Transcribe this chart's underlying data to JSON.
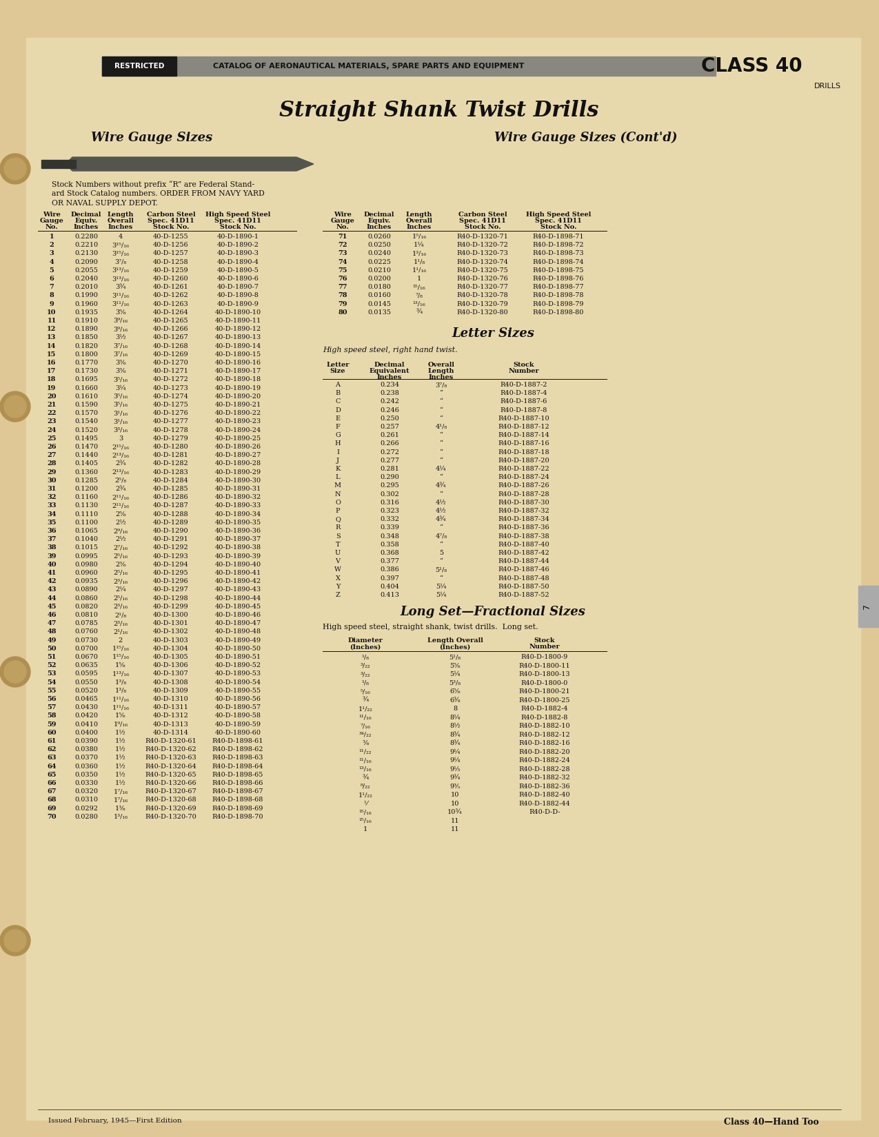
{
  "bg_color": "#e8d5a3",
  "title": "Straight Shank Twist Drills",
  "header_text": "CATALOG OF AERONAUTICAL MATERIALS, SPARE PARTS AND EQUIPMENT",
  "class_text": "CLASS 40",
  "restricted_text": "RESTRICTED",
  "drills_text": "DRILLS",
  "footer_left": "Issued February, 1945—First Edition",
  "footer_right": "Class 40—Hand Too",
  "section1_title": "Wire Gauge Sizes",
  "section2_title": "Wire Gauge Sizes (Cont'd)",
  "section3_title": "Letter Sizes",
  "section4_title": "Long Set—Fractional Sizes",
  "stock_note_lines": [
    "Stock Numbers without prefix “R” are Federal Stand-",
    "ard Stock Catalog numbers. ORDER FROM NAVY YARD",
    "OR NAVAL SUPPLY DEPOT."
  ],
  "wire_gauge_data": [
    [
      "1",
      "0.2280",
      "4",
      "40-D-1255",
      "40-D-1890-1"
    ],
    [
      "2",
      "0.2210",
      "3¹⁵/₁₆",
      "40-D-1256",
      "40-D-1890-2"
    ],
    [
      "3",
      "0.2130",
      "3¹⁵/₁₆",
      "40-D-1257",
      "40-D-1890-3"
    ],
    [
      "4",
      "0.2090",
      "3⁷/₈",
      "40-D-1258",
      "40-D-1890-4"
    ],
    [
      "5",
      "0.2055",
      "3¹³/₁₆",
      "40-D-1259",
      "40-D-1890-5"
    ],
    [
      "6",
      "0.2040",
      "3¹³/₁₆",
      "40-D-1260",
      "40-D-1890-6"
    ],
    [
      "7",
      "0.2010",
      "3¾",
      "40-D-1261",
      "40-D-1890-7"
    ],
    [
      "8",
      "0.1990",
      "3¹¹/₁₆",
      "40-D-1262",
      "40-D-1890-8"
    ],
    [
      "9",
      "0.1960",
      "3¹¹/₁₆",
      "40-D-1263",
      "40-D-1890-9"
    ],
    [
      "10",
      "0.1935",
      "3⅝",
      "40-D-1264",
      "40-D-1890-10"
    ],
    [
      "11",
      "0.1910",
      "3⁹/₁₆",
      "40-D-1265",
      "40-D-1890-11"
    ],
    [
      "12",
      "0.1890",
      "3⁹/₁₆",
      "40-D-1266",
      "40-D-1890-12"
    ],
    [
      "13",
      "0.1850",
      "3½",
      "40-D-1267",
      "40-D-1890-13"
    ],
    [
      "14",
      "0.1820",
      "3⁷/₁₆",
      "40-D-1268",
      "40-D-1890-14"
    ],
    [
      "15",
      "0.1800",
      "3⁷/₁₆",
      "40-D-1269",
      "40-D-1890-15"
    ],
    [
      "16",
      "0.1770",
      "3⅜",
      "40-D-1270",
      "40-D-1890-16"
    ],
    [
      "17",
      "0.1730",
      "3⅜",
      "40-D-1271",
      "40-D-1890-17"
    ],
    [
      "18",
      "0.1695",
      "3⁵/₁₆",
      "40-D-1272",
      "40-D-1890-18"
    ],
    [
      "19",
      "0.1660",
      "3¼",
      "40-D-1273",
      "40-D-1890-19"
    ],
    [
      "20",
      "0.1610",
      "3⁵/₁₆",
      "40-D-1274",
      "40-D-1890-20"
    ],
    [
      "21",
      "0.1590",
      "3⁵/₁₆",
      "40-D-1275",
      "40-D-1890-21"
    ],
    [
      "22",
      "0.1570",
      "3¹/₁₆",
      "40-D-1276",
      "40-D-1890-22"
    ],
    [
      "23",
      "0.1540",
      "3¹/₁₆",
      "40-D-1277",
      "40-D-1890-23"
    ],
    [
      "24",
      "0.1520",
      "3³/₁₆",
      "40-D-1278",
      "40-D-1890-24"
    ],
    [
      "25",
      "0.1495",
      "3",
      "40-D-1279",
      "40-D-1890-25"
    ],
    [
      "26",
      "0.1470",
      "2¹⁵/₁₆",
      "40-D-1280",
      "40-D-1890-26"
    ],
    [
      "27",
      "0.1440",
      "2¹³/₁₆",
      "40-D-1281",
      "40-D-1890-27"
    ],
    [
      "28",
      "0.1405",
      "2¾",
      "40-D-1282",
      "40-D-1890-28"
    ],
    [
      "29",
      "0.1360",
      "2¹³/₁₆",
      "40-D-1283",
      "40-D-1890-29"
    ],
    [
      "30",
      "0.1285",
      "2⁵/₈",
      "40-D-1284",
      "40-D-1890-30"
    ],
    [
      "31",
      "0.1200",
      "2¾",
      "40-D-1285",
      "40-D-1890-31"
    ],
    [
      "32",
      "0.1160",
      "2¹¹/₁₆",
      "40-D-1286",
      "40-D-1890-32"
    ],
    [
      "33",
      "0.1130",
      "2¹¹/₁₆",
      "40-D-1287",
      "40-D-1890-33"
    ],
    [
      "34",
      "0.1110",
      "2⅝",
      "40-D-1288",
      "40-D-1890-34"
    ],
    [
      "35",
      "0.1100",
      "2½",
      "40-D-1289",
      "40-D-1890-35"
    ],
    [
      "36",
      "0.1065",
      "2⁹/₁₆",
      "40-D-1290",
      "40-D-1890-36"
    ],
    [
      "37",
      "0.1040",
      "2½",
      "40-D-1291",
      "40-D-1890-37"
    ],
    [
      "38",
      "0.1015",
      "2⁷/₁₆",
      "40-D-1292",
      "40-D-1890-38"
    ],
    [
      "39",
      "0.0995",
      "2⁵/₁₆",
      "40-D-1293",
      "40-D-1890-39"
    ],
    [
      "40",
      "0.0980",
      "2⅜",
      "40-D-1294",
      "40-D-1890-40"
    ],
    [
      "41",
      "0.0960",
      "2⁵/₁₆",
      "40-D-1295",
      "40-D-1890-41"
    ],
    [
      "42",
      "0.0935",
      "2³/₁₆",
      "40-D-1296",
      "40-D-1890-42"
    ],
    [
      "43",
      "0.0890",
      "2¼",
      "40-D-1297",
      "40-D-1890-43"
    ],
    [
      "44",
      "0.0860",
      "2⁵/₁₆",
      "40-D-1298",
      "40-D-1890-44"
    ],
    [
      "45",
      "0.0820",
      "2³/₁₆",
      "40-D-1299",
      "40-D-1890-45"
    ],
    [
      "46",
      "0.0810",
      "2¹/₈",
      "40-D-1300",
      "40-D-1890-46"
    ],
    [
      "47",
      "0.0785",
      "2³/₁₆",
      "40-D-1301",
      "40-D-1890-47"
    ],
    [
      "48",
      "0.0760",
      "2¹/₁₆",
      "40-D-1302",
      "40-D-1890-48"
    ],
    [
      "49",
      "0.0730",
      "2",
      "40-D-1303",
      "40-D-1890-49"
    ],
    [
      "50",
      "0.0700",
      "1¹⁵/₁₆",
      "40-D-1304",
      "40-D-1890-50"
    ],
    [
      "51",
      "0.0670",
      "1¹⁵/₁₆",
      "40-D-1305",
      "40-D-1890-51"
    ],
    [
      "52",
      "0.0635",
      "1⅝",
      "40-D-1306",
      "40-D-1890-52"
    ],
    [
      "53",
      "0.0595",
      "1¹³/₁₆",
      "40-D-1307",
      "40-D-1890-53"
    ],
    [
      "54",
      "0.0550",
      "1³/₈",
      "40-D-1308",
      "40-D-1890-54"
    ],
    [
      "55",
      "0.0520",
      "1³/₈",
      "40-D-1309",
      "40-D-1890-55"
    ],
    [
      "56",
      "0.0465",
      "1¹¹/₁₆",
      "40-D-1310",
      "40-D-1890-56"
    ],
    [
      "57",
      "0.0430",
      "1¹¹/₁₆",
      "40-D-1311",
      "40-D-1890-57"
    ],
    [
      "58",
      "0.0420",
      "1⅝",
      "40-D-1312",
      "40-D-1890-58"
    ],
    [
      "59",
      "0.0410",
      "1⁹/₁₆",
      "40-D-1313",
      "40-D-1890-59"
    ],
    [
      "60",
      "0.0400",
      "1½",
      "40-D-1314",
      "40-D-1890-60"
    ],
    [
      "61",
      "0.0390",
      "1½",
      "R40-D-1320-61",
      "R40-D-1898-61"
    ],
    [
      "62",
      "0.0380",
      "1½",
      "R40-D-1320-62",
      "R40-D-1898-62"
    ],
    [
      "63",
      "0.0370",
      "1½",
      "R40-D-1320-63",
      "R40-D-1898-63"
    ],
    [
      "64",
      "0.0360",
      "1½",
      "R40-D-1320-64",
      "R40-D-1898-64"
    ],
    [
      "65",
      "0.0350",
      "1½",
      "R40-D-1320-65",
      "R40-D-1898-65"
    ],
    [
      "66",
      "0.0330",
      "1½",
      "R40-D-1320-66",
      "R40-D-1898-66"
    ],
    [
      "67",
      "0.0320",
      "1⁷/₁₆",
      "R40-D-1320-67",
      "R40-D-1898-67"
    ],
    [
      "68",
      "0.0310",
      "1⁷/₁₆",
      "R40-D-1320-68",
      "R40-D-1898-68"
    ],
    [
      "69",
      "0.0292",
      "1⅜",
      "R40-D-1320-69",
      "R40-D-1898-69"
    ],
    [
      "70",
      "0.0280",
      "1³/₁₆",
      "R40-D-1320-70",
      "R40-D-1898-70"
    ]
  ],
  "wire_gauge_cont_data": [
    [
      "71",
      "0.0260",
      "1⁵/₁₆",
      "R40-D-1320-71",
      "R40-D-1898-71"
    ],
    [
      "72",
      "0.0250",
      "1¼",
      "R40-D-1320-72",
      "R40-D-1898-72"
    ],
    [
      "73",
      "0.0240",
      "1³/₁₆",
      "R40-D-1320-73",
      "R40-D-1898-73"
    ],
    [
      "74",
      "0.0225",
      "1¹/₈",
      "R40-D-1320-74",
      "R40-D-1898-74"
    ],
    [
      "75",
      "0.0210",
      "1¹/₁₆",
      "R40-D-1320-75",
      "R40-D-1898-75"
    ],
    [
      "76",
      "0.0200",
      "1",
      "R40-D-1320-76",
      "R40-D-1898-76"
    ],
    [
      "77",
      "0.0180",
      "¹⁵/₁₆",
      "R40-D-1320-77",
      "R40-D-1898-77"
    ],
    [
      "78",
      "0.0160",
      "⁷/₈",
      "R40-D-1320-78",
      "R40-D-1898-78"
    ],
    [
      "79",
      "0.0145",
      "¹³/₁₆",
      "R40-D-1320-79",
      "R40-D-1898-79"
    ],
    [
      "80",
      "0.0135",
      "¾",
      "R40-D-1320-80",
      "R40-D-1898-80"
    ]
  ],
  "letter_sizes_note": "High speed steel, right hand twist.",
  "letter_data": [
    [
      "A",
      "0.234",
      "3⁷/₈",
      "R40-D-1887-2"
    ],
    [
      "B",
      "0.238",
      "“",
      "R40-D-1887-4"
    ],
    [
      "C",
      "0.242",
      "“",
      "R40-D-1887-6"
    ],
    [
      "D",
      "0.246",
      "“",
      "R40-D-1887-8"
    ],
    [
      "E",
      "0.250",
      "“",
      "R40-D-1887-10"
    ],
    [
      "F",
      "0.257",
      "4¹/₈",
      "R40-D-1887-12"
    ],
    [
      "G",
      "0.261",
      "“",
      "R40-D-1887-14"
    ],
    [
      "H",
      "0.266",
      "“",
      "R40-D-1887-16"
    ],
    [
      "I",
      "0.272",
      "“",
      "R40-D-1887-18"
    ],
    [
      "J",
      "0.277",
      "“",
      "R40-D-1887-20"
    ],
    [
      "K",
      "0.281",
      "4¼",
      "R40-D-1887-22"
    ],
    [
      "L",
      "0.290",
      "“",
      "R40-D-1887-24"
    ],
    [
      "M",
      "0.295",
      "4¾",
      "R40-D-1887-26"
    ],
    [
      "N",
      "0.302",
      "“",
      "R40-D-1887-28"
    ],
    [
      "O",
      "0.316",
      "4½",
      "R40-D-1887-30"
    ],
    [
      "P",
      "0.323",
      "4½",
      "R40-D-1887-32"
    ],
    [
      "Q",
      "0.332",
      "4¾",
      "R40-D-1887-34"
    ],
    [
      "R",
      "0.339",
      "“",
      "R40-D-1887-36"
    ],
    [
      "S",
      "0.348",
      "4⁷/₈",
      "R40-D-1887-38"
    ],
    [
      "T",
      "0.358",
      "“",
      "R40-D-1887-40"
    ],
    [
      "U",
      "0.368",
      "5",
      "R40-D-1887-42"
    ],
    [
      "V",
      "0.377",
      "“",
      "R40-D-1887-44"
    ],
    [
      "W",
      "0.386",
      "5¹/₈",
      "R40-D-1887-46"
    ],
    [
      "X",
      "0.397",
      "“",
      "R40-D-1887-48"
    ],
    [
      "Y",
      "0.404",
      "5¼",
      "R40-D-1887-50"
    ],
    [
      "Z",
      "0.413",
      "5¼",
      "R40-D-1887-52"
    ]
  ],
  "long_set_note": "High speed steel, straight shank, twist drills.  Long set.",
  "long_set_data": [
    [
      "¹/₈",
      "5¹/₈",
      "R40-D-1800-9"
    ],
    [
      "³/₂₂",
      "5⅝",
      "R40-D-1800-11"
    ],
    [
      "³/₂₂",
      "5¼",
      "R40-D-1800-13"
    ],
    [
      "¹/₈",
      "5³/₈",
      "R40-D-1800-0"
    ],
    [
      "⁵/₁₆",
      "6⅝",
      "R40-D-1800-21"
    ],
    [
      "¾",
      "6¾",
      "R40-D-1800-25"
    ],
    [
      "1¹/₂₂",
      "8",
      "R40-D-1882-4"
    ],
    [
      "¹¹/₁₆",
      "8¼",
      "R40-D-1882-8"
    ],
    [
      "⁷/₁₆",
      "8½",
      "R40-D-1882-10"
    ],
    [
      "³⁴/₂₂",
      "8¾",
      "R40-D-1882-12"
    ],
    [
      "⅜",
      "8¾",
      "R40-D-1882-16"
    ],
    [
      "¹¹/₂₂",
      "9¼",
      "R40-D-1882-20"
    ],
    [
      "¹¹/₁₆",
      "9¼",
      "R40-D-1882-24"
    ],
    [
      "¹³/₁₆",
      "9⅕",
      "R40-D-1882-28"
    ],
    [
      "¾",
      "9¾",
      "R40-D-1882-32"
    ],
    [
      "⁸/₂₂",
      "9⅗",
      "R40-D-1882-36"
    ],
    [
      "1¹/₂₂",
      "10",
      "R40-D-1882-40"
    ],
    [
      "⅟",
      "10",
      "R40-D-1882-44"
    ],
    [
      "¹⁵/₁₆",
      "10¾",
      "R40-D-D-"
    ],
    [
      "¹⁵/₁₆",
      "11",
      ""
    ],
    [
      "1",
      "11",
      ""
    ]
  ]
}
